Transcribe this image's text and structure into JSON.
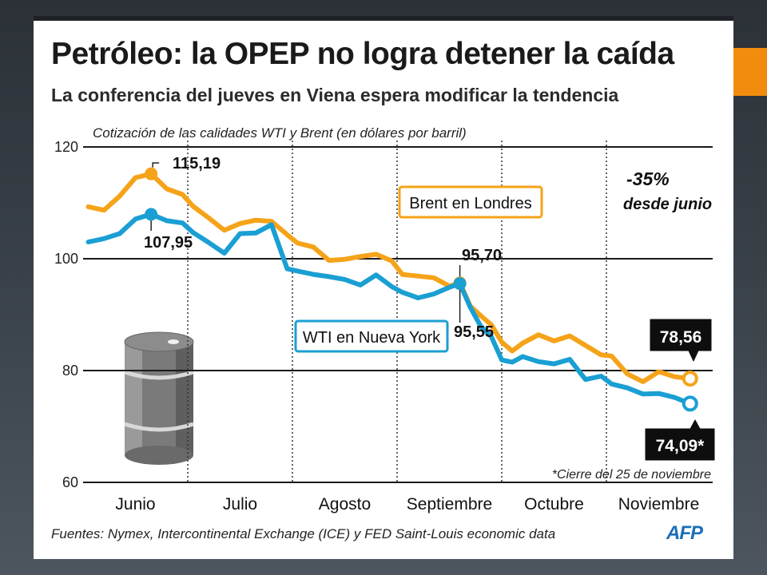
{
  "header": {
    "title": "Petróleo: la OPEP no logra detener la caída",
    "subtitle": "La conferencia del jueves en Viena espera modificar la tendencia"
  },
  "footer": {
    "source": "Fuentes: Nymex, Intercontinental Exchange (ICE) y FED Saint-Louis economic data",
    "logo": "AFP"
  },
  "colors": {
    "brent": "#f5a319",
    "wti": "#1a9fd3",
    "accent": "#f28c0f",
    "logo": "#1b6fb8"
  },
  "chart_data": {
    "type": "line",
    "title": "Petróleo: la OPEP no logra detener la caída",
    "ylabel": "Cotización de las calidades WTI y Brent (en dólares por barril)",
    "xlabel": "",
    "ylim": [
      60,
      120
    ],
    "yticks": [
      60,
      80,
      100,
      120
    ],
    "ytick_labels": [
      "60",
      "80",
      "100",
      "120"
    ],
    "months": [
      "Junio",
      "Julio",
      "Agosto",
      "Septiembre",
      "Octubre",
      "Noviembre"
    ],
    "month_positions": [
      0.5,
      1.5,
      2.5,
      3.5,
      4.5,
      5.5
    ],
    "month_separators": [
      1,
      2,
      3,
      4,
      5
    ],
    "x_domain": [
      0,
      6
    ],
    "grid": "horizontal",
    "series": [
      {
        "name": "Brent en Londres",
        "color": "#f5a319",
        "x": [
          0.05,
          0.2,
          0.35,
          0.5,
          0.65,
          0.8,
          0.95,
          1.05,
          1.2,
          1.35,
          1.5,
          1.65,
          1.8,
          1.95,
          2.05,
          2.2,
          2.35,
          2.5,
          2.65,
          2.8,
          2.95,
          3.05,
          3.2,
          3.35,
          3.5,
          3.6,
          3.7,
          3.8,
          3.9,
          4.0,
          4.1,
          4.2,
          4.35,
          4.5,
          4.65,
          4.8,
          4.95,
          5.05,
          5.2,
          5.35,
          5.5,
          5.65,
          5.8
        ],
        "y": [
          109.3,
          108.7,
          111.2,
          114.5,
          115.19,
          112.5,
          111.5,
          109.4,
          107.3,
          105.1,
          106.3,
          106.9,
          106.7,
          104.3,
          102.8,
          102.1,
          99.7,
          99.9,
          100.4,
          100.8,
          99.6,
          97.2,
          96.9,
          96.6,
          95.1,
          95.7,
          91.5,
          89.8,
          88.2,
          85.1,
          83.5,
          84.9,
          86.4,
          85.3,
          86.2,
          84.5,
          82.8,
          82.6,
          79.4,
          78.0,
          79.8,
          78.9,
          78.56
        ]
      },
      {
        "name": "WTI en Nueva York",
        "color": "#1a9fd3",
        "x": [
          0.05,
          0.2,
          0.35,
          0.5,
          0.65,
          0.8,
          0.95,
          1.05,
          1.2,
          1.35,
          1.5,
          1.65,
          1.8,
          1.95,
          2.05,
          2.2,
          2.35,
          2.5,
          2.65,
          2.8,
          2.95,
          3.05,
          3.2,
          3.35,
          3.5,
          3.6,
          3.7,
          3.8,
          3.9,
          4.0,
          4.1,
          4.2,
          4.35,
          4.5,
          4.65,
          4.8,
          4.95,
          5.05,
          5.2,
          5.35,
          5.5,
          5.65,
          5.8
        ],
        "y": [
          103.0,
          103.6,
          104.5,
          107.1,
          107.95,
          106.8,
          106.4,
          104.7,
          102.9,
          101.0,
          104.5,
          104.6,
          106.1,
          98.2,
          97.8,
          97.2,
          96.8,
          96.3,
          95.3,
          97.1,
          95.0,
          94.0,
          93.0,
          93.7,
          94.9,
          95.55,
          91.3,
          87.9,
          86.1,
          81.9,
          81.5,
          82.5,
          81.6,
          81.2,
          82.0,
          78.4,
          79.0,
          77.6,
          76.9,
          75.8,
          75.9,
          75.2,
          74.09
        ]
      }
    ],
    "annotations": {
      "brent_peak": "115,19",
      "wti_peak": "107,95",
      "brent_sep": "95,70",
      "wti_sep": "95,55",
      "brent_last": "78,56",
      "wti_last": "74,09*",
      "change_pct": "-35%",
      "change_text": "desde junio",
      "footnote": "*Cierre del 25 de noviembre",
      "brent_legend": "Brent en Londres",
      "wti_legend": "WTI en Nueva York"
    }
  }
}
